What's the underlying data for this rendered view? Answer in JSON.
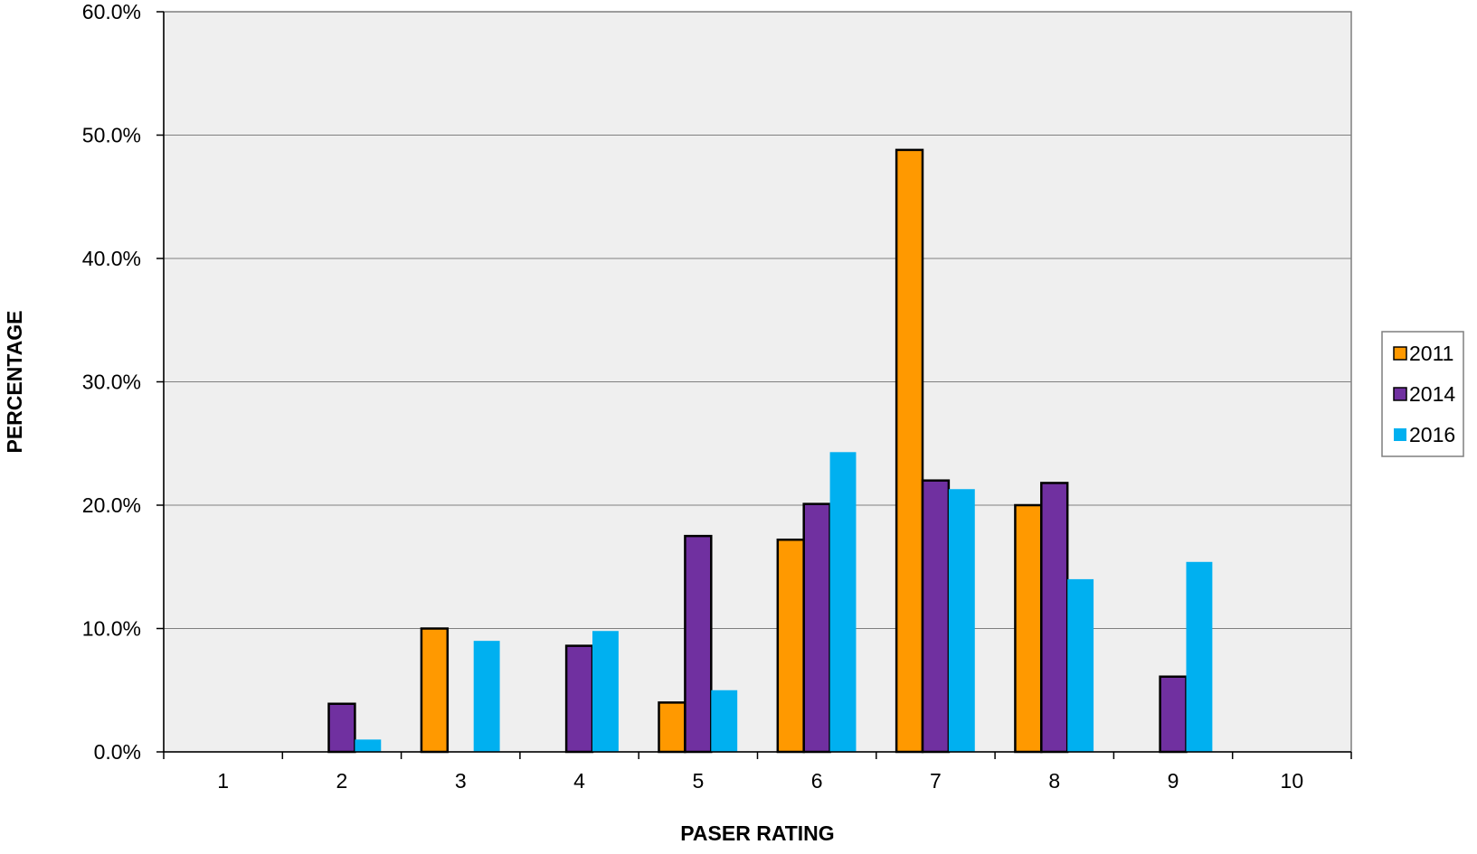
{
  "chart_data": {
    "type": "bar",
    "title": "",
    "xlabel": "PASER RATING",
    "ylabel": "PERCENTAGE",
    "categories": [
      "1",
      "2",
      "3",
      "4",
      "5",
      "6",
      "7",
      "8",
      "9",
      "10"
    ],
    "series": [
      {
        "name": "2011",
        "color": "#FF9900",
        "outlined": true,
        "values": [
          0,
          0,
          10.0,
          0,
          4.0,
          17.2,
          48.8,
          20.0,
          0,
          0
        ]
      },
      {
        "name": "2014",
        "color": "#7030A0",
        "outlined": true,
        "values": [
          0,
          3.9,
          0,
          8.6,
          17.5,
          20.1,
          22.0,
          21.8,
          6.1,
          0
        ]
      },
      {
        "name": "2016",
        "color": "#00B0F0",
        "outlined": false,
        "values": [
          0,
          1.0,
          9.0,
          9.8,
          5.0,
          24.3,
          21.3,
          14.0,
          15.4,
          0
        ]
      }
    ],
    "ylim": [
      0,
      60
    ],
    "yticks": [
      0,
      10,
      20,
      30,
      40,
      50,
      60
    ],
    "ytick_labels": [
      "0.0%",
      "10.0%",
      "20.0%",
      "30.0%",
      "40.0%",
      "50.0%",
      "60.0%"
    ],
    "grid": true,
    "plot_background": "#EFEFEF",
    "legend_position": "right"
  }
}
